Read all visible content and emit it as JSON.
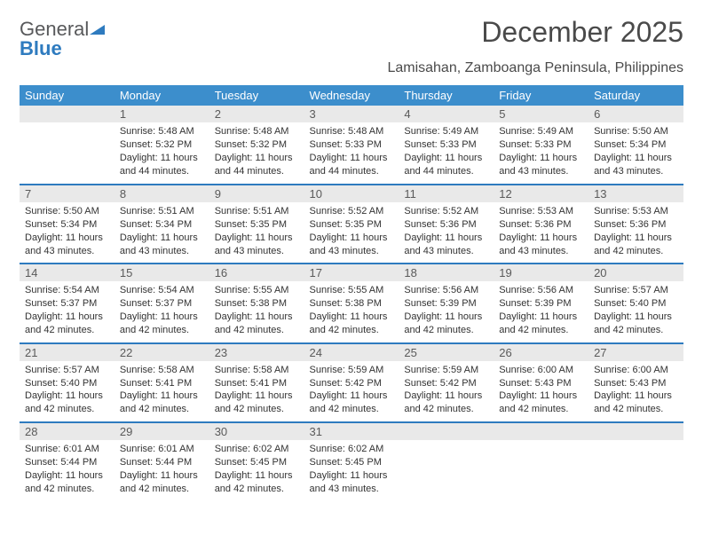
{
  "logo": {
    "word1": "General",
    "word2": "Blue"
  },
  "title": "December 2025",
  "location": "Lamisahan, Zamboanga Peninsula, Philippines",
  "colors": {
    "header_bg": "#3c8ecc",
    "accent_border": "#2e7bbf",
    "daynum_bg": "#e9e9e9",
    "text": "#333333",
    "title_text": "#4a4a4a",
    "logo_gray": "#58595b",
    "logo_blue": "#2e7bbf",
    "background": "#ffffff"
  },
  "typography": {
    "title_fontsize": 32,
    "subtitle_fontsize": 16,
    "dayheader_fontsize": 13,
    "daynum_fontsize": 13,
    "body_fontsize": 11
  },
  "day_labels": [
    "Sunday",
    "Monday",
    "Tuesday",
    "Wednesday",
    "Thursday",
    "Friday",
    "Saturday"
  ],
  "weeks": [
    [
      null,
      {
        "n": "1",
        "sunrise": "Sunrise: 5:48 AM",
        "sunset": "Sunset: 5:32 PM",
        "daylight": "Daylight: 11 hours and 44 minutes."
      },
      {
        "n": "2",
        "sunrise": "Sunrise: 5:48 AM",
        "sunset": "Sunset: 5:32 PM",
        "daylight": "Daylight: 11 hours and 44 minutes."
      },
      {
        "n": "3",
        "sunrise": "Sunrise: 5:48 AM",
        "sunset": "Sunset: 5:33 PM",
        "daylight": "Daylight: 11 hours and 44 minutes."
      },
      {
        "n": "4",
        "sunrise": "Sunrise: 5:49 AM",
        "sunset": "Sunset: 5:33 PM",
        "daylight": "Daylight: 11 hours and 44 minutes."
      },
      {
        "n": "5",
        "sunrise": "Sunrise: 5:49 AM",
        "sunset": "Sunset: 5:33 PM",
        "daylight": "Daylight: 11 hours and 43 minutes."
      },
      {
        "n": "6",
        "sunrise": "Sunrise: 5:50 AM",
        "sunset": "Sunset: 5:34 PM",
        "daylight": "Daylight: 11 hours and 43 minutes."
      }
    ],
    [
      {
        "n": "7",
        "sunrise": "Sunrise: 5:50 AM",
        "sunset": "Sunset: 5:34 PM",
        "daylight": "Daylight: 11 hours and 43 minutes."
      },
      {
        "n": "8",
        "sunrise": "Sunrise: 5:51 AM",
        "sunset": "Sunset: 5:34 PM",
        "daylight": "Daylight: 11 hours and 43 minutes."
      },
      {
        "n": "9",
        "sunrise": "Sunrise: 5:51 AM",
        "sunset": "Sunset: 5:35 PM",
        "daylight": "Daylight: 11 hours and 43 minutes."
      },
      {
        "n": "10",
        "sunrise": "Sunrise: 5:52 AM",
        "sunset": "Sunset: 5:35 PM",
        "daylight": "Daylight: 11 hours and 43 minutes."
      },
      {
        "n": "11",
        "sunrise": "Sunrise: 5:52 AM",
        "sunset": "Sunset: 5:36 PM",
        "daylight": "Daylight: 11 hours and 43 minutes."
      },
      {
        "n": "12",
        "sunrise": "Sunrise: 5:53 AM",
        "sunset": "Sunset: 5:36 PM",
        "daylight": "Daylight: 11 hours and 43 minutes."
      },
      {
        "n": "13",
        "sunrise": "Sunrise: 5:53 AM",
        "sunset": "Sunset: 5:36 PM",
        "daylight": "Daylight: 11 hours and 42 minutes."
      }
    ],
    [
      {
        "n": "14",
        "sunrise": "Sunrise: 5:54 AM",
        "sunset": "Sunset: 5:37 PM",
        "daylight": "Daylight: 11 hours and 42 minutes."
      },
      {
        "n": "15",
        "sunrise": "Sunrise: 5:54 AM",
        "sunset": "Sunset: 5:37 PM",
        "daylight": "Daylight: 11 hours and 42 minutes."
      },
      {
        "n": "16",
        "sunrise": "Sunrise: 5:55 AM",
        "sunset": "Sunset: 5:38 PM",
        "daylight": "Daylight: 11 hours and 42 minutes."
      },
      {
        "n": "17",
        "sunrise": "Sunrise: 5:55 AM",
        "sunset": "Sunset: 5:38 PM",
        "daylight": "Daylight: 11 hours and 42 minutes."
      },
      {
        "n": "18",
        "sunrise": "Sunrise: 5:56 AM",
        "sunset": "Sunset: 5:39 PM",
        "daylight": "Daylight: 11 hours and 42 minutes."
      },
      {
        "n": "19",
        "sunrise": "Sunrise: 5:56 AM",
        "sunset": "Sunset: 5:39 PM",
        "daylight": "Daylight: 11 hours and 42 minutes."
      },
      {
        "n": "20",
        "sunrise": "Sunrise: 5:57 AM",
        "sunset": "Sunset: 5:40 PM",
        "daylight": "Daylight: 11 hours and 42 minutes."
      }
    ],
    [
      {
        "n": "21",
        "sunrise": "Sunrise: 5:57 AM",
        "sunset": "Sunset: 5:40 PM",
        "daylight": "Daylight: 11 hours and 42 minutes."
      },
      {
        "n": "22",
        "sunrise": "Sunrise: 5:58 AM",
        "sunset": "Sunset: 5:41 PM",
        "daylight": "Daylight: 11 hours and 42 minutes."
      },
      {
        "n": "23",
        "sunrise": "Sunrise: 5:58 AM",
        "sunset": "Sunset: 5:41 PM",
        "daylight": "Daylight: 11 hours and 42 minutes."
      },
      {
        "n": "24",
        "sunrise": "Sunrise: 5:59 AM",
        "sunset": "Sunset: 5:42 PM",
        "daylight": "Daylight: 11 hours and 42 minutes."
      },
      {
        "n": "25",
        "sunrise": "Sunrise: 5:59 AM",
        "sunset": "Sunset: 5:42 PM",
        "daylight": "Daylight: 11 hours and 42 minutes."
      },
      {
        "n": "26",
        "sunrise": "Sunrise: 6:00 AM",
        "sunset": "Sunset: 5:43 PM",
        "daylight": "Daylight: 11 hours and 42 minutes."
      },
      {
        "n": "27",
        "sunrise": "Sunrise: 6:00 AM",
        "sunset": "Sunset: 5:43 PM",
        "daylight": "Daylight: 11 hours and 42 minutes."
      }
    ],
    [
      {
        "n": "28",
        "sunrise": "Sunrise: 6:01 AM",
        "sunset": "Sunset: 5:44 PM",
        "daylight": "Daylight: 11 hours and 42 minutes."
      },
      {
        "n": "29",
        "sunrise": "Sunrise: 6:01 AM",
        "sunset": "Sunset: 5:44 PM",
        "daylight": "Daylight: 11 hours and 42 minutes."
      },
      {
        "n": "30",
        "sunrise": "Sunrise: 6:02 AM",
        "sunset": "Sunset: 5:45 PM",
        "daylight": "Daylight: 11 hours and 42 minutes."
      },
      {
        "n": "31",
        "sunrise": "Sunrise: 6:02 AM",
        "sunset": "Sunset: 5:45 PM",
        "daylight": "Daylight: 11 hours and 43 minutes."
      },
      null,
      null,
      null
    ]
  ]
}
